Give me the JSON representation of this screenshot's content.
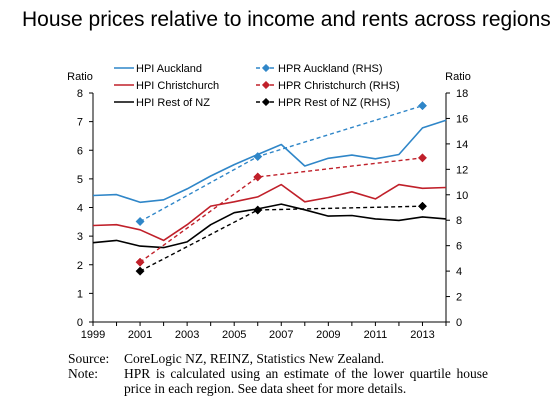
{
  "chart_data": {
    "type": "line",
    "title": "House prices relative to income and rents across regions",
    "x_ticks": [
      1999,
      2001,
      2003,
      2005,
      2007,
      2009,
      2011,
      2013
    ],
    "xlim": [
      1999,
      2014
    ],
    "ylabel_left": "Ratio",
    "ylabel_right": "Ratio",
    "ylim_left": [
      0,
      8
    ],
    "ylim_right": [
      0,
      18
    ],
    "yticks_left": [
      0,
      1,
      2,
      3,
      4,
      5,
      6,
      7,
      8
    ],
    "yticks_right": [
      0,
      2,
      4,
      6,
      8,
      10,
      12,
      14,
      16,
      18
    ],
    "legend_placement": "top-left",
    "series": [
      {
        "name": "HPI Auckland",
        "axis": "left",
        "color": "#2f86c8",
        "style": "solid",
        "marker": "none",
        "x": [
          1999,
          2000,
          2001,
          2002,
          2003,
          2004,
          2005,
          2006,
          2007,
          2008,
          2009,
          2010,
          2011,
          2012,
          2013,
          2014
        ],
        "values": [
          4.42,
          4.45,
          4.18,
          4.27,
          4.65,
          5.1,
          5.5,
          5.85,
          6.2,
          5.45,
          5.72,
          5.83,
          5.7,
          5.85,
          6.78,
          7.05
        ]
      },
      {
        "name": "HPI Christchurch",
        "axis": "left",
        "color": "#c0202a",
        "style": "solid",
        "marker": "none",
        "x": [
          1999,
          2000,
          2001,
          2002,
          2003,
          2004,
          2005,
          2006,
          2007,
          2008,
          2009,
          2010,
          2011,
          2012,
          2013,
          2014
        ],
        "values": [
          3.37,
          3.4,
          3.22,
          2.85,
          3.4,
          4.05,
          4.2,
          4.37,
          4.8,
          4.2,
          4.35,
          4.55,
          4.3,
          4.8,
          4.67,
          4.7
        ]
      },
      {
        "name": "HPI Rest of NZ",
        "axis": "left",
        "color": "#000000",
        "style": "solid",
        "marker": "none",
        "x": [
          1999,
          2000,
          2001,
          2002,
          2003,
          2004,
          2005,
          2006,
          2007,
          2008,
          2009,
          2010,
          2011,
          2012,
          2013,
          2014
        ],
        "values": [
          2.77,
          2.85,
          2.65,
          2.6,
          2.8,
          3.4,
          3.82,
          3.95,
          4.12,
          3.92,
          3.7,
          3.72,
          3.6,
          3.55,
          3.67,
          3.6
        ]
      },
      {
        "name": "HPR Auckland (RHS)",
        "axis": "right",
        "color": "#2f86c8",
        "style": "dashed",
        "marker": "diamond",
        "x": [
          2001,
          2006,
          2013
        ],
        "values": [
          7.9,
          13.0,
          17.0
        ]
      },
      {
        "name": "HPR Christchurch (RHS)",
        "axis": "right",
        "color": "#c0202a",
        "style": "dashed",
        "marker": "diamond",
        "x": [
          2001,
          2006,
          2013
        ],
        "values": [
          4.7,
          11.4,
          12.9
        ]
      },
      {
        "name": "HPR Rest of NZ (RHS)",
        "axis": "right",
        "color": "#000000",
        "style": "dashed",
        "marker": "diamond",
        "x": [
          2001,
          2006,
          2013
        ],
        "values": [
          4.0,
          8.8,
          9.1
        ]
      }
    ]
  },
  "notes": {
    "source_label": "Source:",
    "source_text": "CoreLogic NZ, REINZ, Statistics New Zealand.",
    "note_label": "Note:",
    "note_text": "HPR is calculated using an estimate of the lower quartile house price in each region. See data sheet for more details."
  }
}
